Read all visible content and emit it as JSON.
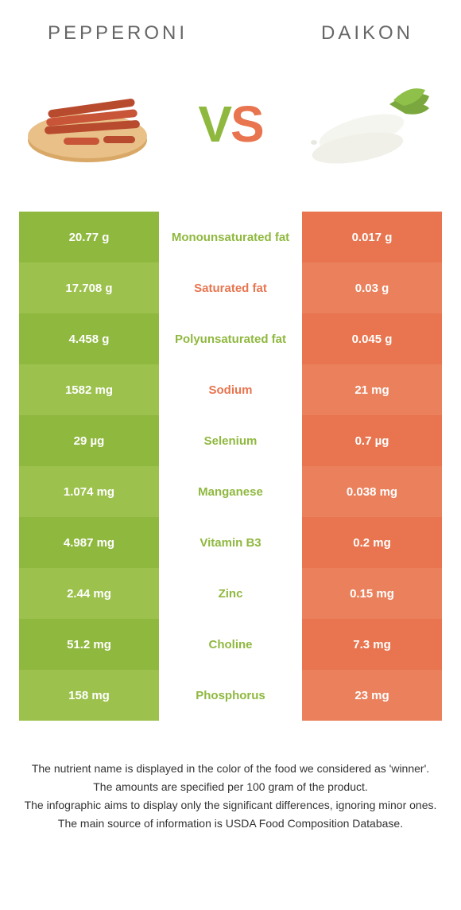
{
  "header": {
    "left_title": "Pepperoni",
    "right_title": "Daikon"
  },
  "vs": {
    "v": "V",
    "s": "S"
  },
  "colors": {
    "left_food": "#8fb83f",
    "left_food_alt": "#9cc14d",
    "right_food": "#e8754f",
    "right_food_alt": "#ea805c",
    "mid_green": "#8fb83f",
    "mid_orange": "#e8754f",
    "title_text": "#666666",
    "footer_text": "#333333"
  },
  "table": {
    "rows": [
      {
        "left": "20.77 g",
        "nutrient": "Monounsaturated fat",
        "right": "0.017 g",
        "winner": "left"
      },
      {
        "left": "17.708 g",
        "nutrient": "Saturated fat",
        "right": "0.03 g",
        "winner": "right"
      },
      {
        "left": "4.458 g",
        "nutrient": "Polyunsaturated fat",
        "right": "0.045 g",
        "winner": "left"
      },
      {
        "left": "1582 mg",
        "nutrient": "Sodium",
        "right": "21 mg",
        "winner": "right"
      },
      {
        "left": "29 µg",
        "nutrient": "Selenium",
        "right": "0.7 µg",
        "winner": "left"
      },
      {
        "left": "1.074 mg",
        "nutrient": "Manganese",
        "right": "0.038 mg",
        "winner": "left"
      },
      {
        "left": "4.987 mg",
        "nutrient": "Vitamin B3",
        "right": "0.2 mg",
        "winner": "left"
      },
      {
        "left": "2.44 mg",
        "nutrient": "Zinc",
        "right": "0.15 mg",
        "winner": "left"
      },
      {
        "left": "51.2 mg",
        "nutrient": "Choline",
        "right": "7.3 mg",
        "winner": "left"
      },
      {
        "left": "158 mg",
        "nutrient": "Phosphorus",
        "right": "23 mg",
        "winner": "left"
      }
    ]
  },
  "footer": {
    "line1": "The nutrient name is displayed in the color of the food we considered as 'winner'.",
    "line2": "The amounts are specified per 100 gram of the product.",
    "line3": "The infographic aims to display only the significant differences, ignoring minor ones.",
    "line4": "The main source of information is USDA Food Composition Database."
  }
}
